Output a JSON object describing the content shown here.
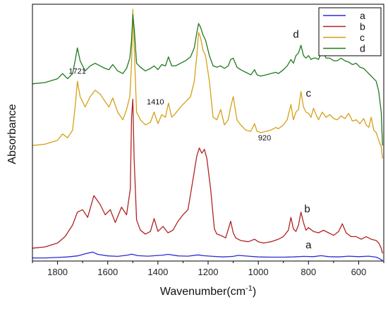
{
  "chart_data": {
    "type": "line",
    "xlabel": "Wavenumber(cm",
    "xlabel_sup": "-1",
    "xlabel_close": ")",
    "ylabel": "Absorbance",
    "xlim": [
      1900,
      500
    ],
    "ylim": [
      0,
      100
    ],
    "x_reversed": true,
    "y_ticks_shown": false,
    "xticks": [
      1800,
      1600,
      1400,
      1200,
      1000,
      800,
      600
    ],
    "xtick_labels": [
      "1800",
      "1600",
      "1400",
      "1200",
      "1000",
      "800",
      "600"
    ],
    "grid": false,
    "legend_position": "top-right",
    "series": [
      {
        "name": "a",
        "color": "#2b2bd6",
        "x": [
          1900,
          1850,
          1800,
          1760,
          1720,
          1690,
          1660,
          1640,
          1600,
          1560,
          1520,
          1505,
          1480,
          1440,
          1410,
          1380,
          1360,
          1320,
          1280,
          1240,
          1220,
          1180,
          1140,
          1100,
          1080,
          1040,
          1000,
          950,
          900,
          860,
          820,
          780,
          750,
          720,
          680,
          640,
          600,
          560,
          530,
          515,
          505
        ],
        "y": [
          1.2,
          1.2,
          1.4,
          1.6,
          2.0,
          2.8,
          3.5,
          2.6,
          2.0,
          1.8,
          2.3,
          2.7,
          2.1,
          1.9,
          2.1,
          2.3,
          2.6,
          2.0,
          1.9,
          2.4,
          2.1,
          1.8,
          1.6,
          1.8,
          2.2,
          1.9,
          1.6,
          1.5,
          1.5,
          1.6,
          1.8,
          1.7,
          2.1,
          1.7,
          1.6,
          1.9,
          1.7,
          1.9,
          1.5,
          0.8,
          0.2
        ]
      },
      {
        "name": "b",
        "color": "#b22222",
        "x": [
          1900,
          1850,
          1800,
          1770,
          1740,
          1721,
          1700,
          1680,
          1655,
          1630,
          1610,
          1590,
          1570,
          1545,
          1525,
          1510,
          1505,
          1500,
          1495,
          1485,
          1470,
          1450,
          1430,
          1415,
          1400,
          1380,
          1360,
          1340,
          1320,
          1300,
          1280,
          1260,
          1245,
          1235,
          1225,
          1215,
          1205,
          1190,
          1175,
          1165,
          1150,
          1130,
          1110,
          1100,
          1090,
          1070,
          1040,
          1015,
          1000,
          980,
          950,
          920,
          900,
          880,
          870,
          860,
          850,
          840,
          830,
          820,
          810,
          800,
          780,
          760,
          740,
          720,
          700,
          680,
          665,
          650,
          630,
          610,
          590,
          570,
          550,
          530,
          520,
          510,
          505
        ],
        "y": [
          5.0,
          5.5,
          7.0,
          9.5,
          14.0,
          19.0,
          20.0,
          17.0,
          25.5,
          22.0,
          18.0,
          20.0,
          15.0,
          21.0,
          18.0,
          28.0,
          56.0,
          63.0,
          40.0,
          16.0,
          12.0,
          10.5,
          11.5,
          16.5,
          11.5,
          13.5,
          11.0,
          12.0,
          15.5,
          18.0,
          20.0,
          32.0,
          41.0,
          44.0,
          42.0,
          43.5,
          40.0,
          28.0,
          12.5,
          10.5,
          10.0,
          9.0,
          15.5,
          11.0,
          9.0,
          8.0,
          7.5,
          8.5,
          7.5,
          7.0,
          7.5,
          8.5,
          9.5,
          12.0,
          17.0,
          12.5,
          11.5,
          14.0,
          19.0,
          15.0,
          12.0,
          13.0,
          11.5,
          11.0,
          12.0,
          11.0,
          10.0,
          11.5,
          14.5,
          11.0,
          9.5,
          9.5,
          8.5,
          9.5,
          8.5,
          8.0,
          7.0,
          5.0,
          3.0
        ]
      },
      {
        "name": "c",
        "color": "#d4a017",
        "x": [
          1900,
          1850,
          1800,
          1780,
          1760,
          1740,
          1730,
          1721,
          1710,
          1690,
          1670,
          1650,
          1630,
          1610,
          1595,
          1580,
          1560,
          1540,
          1525,
          1512,
          1505,
          1500,
          1494,
          1485,
          1470,
          1450,
          1430,
          1415,
          1400,
          1385,
          1370,
          1358,
          1345,
          1330,
          1310,
          1290,
          1270,
          1255,
          1245,
          1238,
          1230,
          1220,
          1210,
          1195,
          1180,
          1165,
          1150,
          1135,
          1120,
          1110,
          1100,
          1085,
          1070,
          1050,
          1030,
          1015,
          1005,
          990,
          970,
          950,
          930,
          920,
          900,
          885,
          870,
          860,
          850,
          840,
          830,
          820,
          810,
          800,
          790,
          780,
          770,
          760,
          745,
          730,
          715,
          700,
          685,
          670,
          655,
          640,
          625,
          610,
          595,
          580,
          570,
          560,
          550,
          540,
          530,
          520,
          510,
          505
        ],
        "y": [
          45.0,
          45.5,
          47.0,
          49.5,
          48.0,
          51.0,
          60.0,
          70.0,
          64.0,
          60.0,
          64.0,
          66.5,
          65.0,
          62.0,
          60.0,
          63.5,
          58.0,
          55.0,
          59.0,
          64.0,
          77.0,
          98.0,
          82.0,
          58.0,
          55.0,
          53.0,
          54.0,
          58.0,
          53.5,
          57.0,
          56.0,
          61.5,
          56.0,
          57.5,
          60.0,
          62.0,
          64.0,
          70.0,
          80.0,
          89.0,
          87.0,
          82.0,
          80.0,
          70.0,
          56.0,
          55.0,
          59.0,
          53.0,
          55.0,
          60.0,
          64.0,
          55.0,
          53.0,
          51.0,
          50.5,
          53.5,
          50.5,
          50.0,
          50.5,
          51.0,
          52.0,
          51.5,
          53.0,
          55.0,
          61.0,
          55.0,
          58.0,
          59.0,
          66.0,
          60.0,
          58.0,
          57.5,
          56.0,
          59.5,
          57.0,
          55.0,
          58.0,
          56.0,
          57.0,
          55.5,
          55.0,
          56.5,
          55.5,
          57.5,
          54.5,
          55.0,
          53.5,
          55.5,
          53.0,
          52.0,
          56.0,
          51.0,
          50.0,
          47.0,
          44.5,
          40.0
        ]
      },
      {
        "name": "d",
        "color": "#1f7a1f",
        "x": [
          1900,
          1850,
          1800,
          1780,
          1760,
          1740,
          1730,
          1721,
          1710,
          1690,
          1670,
          1650,
          1630,
          1610,
          1595,
          1580,
          1560,
          1540,
          1525,
          1512,
          1505,
          1500,
          1494,
          1485,
          1470,
          1450,
          1430,
          1415,
          1400,
          1385,
          1370,
          1358,
          1345,
          1330,
          1310,
          1290,
          1270,
          1255,
          1245,
          1238,
          1230,
          1220,
          1210,
          1195,
          1180,
          1165,
          1150,
          1135,
          1120,
          1110,
          1100,
          1085,
          1070,
          1050,
          1030,
          1015,
          1005,
          990,
          970,
          950,
          930,
          920,
          900,
          885,
          870,
          860,
          850,
          840,
          830,
          820,
          810,
          800,
          790,
          780,
          770,
          760,
          745,
          730,
          715,
          700,
          685,
          670,
          655,
          640,
          625,
          610,
          595,
          580,
          570,
          560,
          550,
          540,
          530,
          520,
          510,
          505
        ],
        "y": [
          69.0,
          69.5,
          71.0,
          73.0,
          71.0,
          73.0,
          78.0,
          83.0,
          78.0,
          74.0,
          76.0,
          77.0,
          76.0,
          75.0,
          74.5,
          76.5,
          74.0,
          73.0,
          75.0,
          79.0,
          86.0,
          96.0,
          90.0,
          77.0,
          75.5,
          74.0,
          75.0,
          76.0,
          74.5,
          76.5,
          76.0,
          79.5,
          76.0,
          76.0,
          77.0,
          78.0,
          79.5,
          83.0,
          89.0,
          92.5,
          91.0,
          88.0,
          86.0,
          80.0,
          76.0,
          75.5,
          76.0,
          75.0,
          76.0,
          78.5,
          79.0,
          75.5,
          74.5,
          73.5,
          72.5,
          74.5,
          72.5,
          72.0,
          72.5,
          73.0,
          73.5,
          73.0,
          74.5,
          76.0,
          78.5,
          77.0,
          80.0,
          81.0,
          84.0,
          80.0,
          79.0,
          80.0,
          78.5,
          79.0,
          79.0,
          78.5,
          82.0,
          79.0,
          79.0,
          78.0,
          78.0,
          79.0,
          78.0,
          77.5,
          76.5,
          77.0,
          75.5,
          75.0,
          74.0,
          73.0,
          72.0,
          71.0,
          70.0,
          66.0,
          58.0,
          45.0
        ]
      }
    ],
    "annotations": [
      {
        "text": "1721",
        "x": 1721,
        "y": 73
      },
      {
        "text": "1410",
        "x": 1410,
        "y": 61
      },
      {
        "text": "920",
        "x": 975,
        "y": 47
      },
      {
        "text": "d",
        "x": 850,
        "y": 87
      },
      {
        "text": "c",
        "x": 800,
        "y": 64
      },
      {
        "text": "b",
        "x": 805,
        "y": 19
      },
      {
        "text": "a",
        "x": 800,
        "y": 5
      }
    ]
  }
}
